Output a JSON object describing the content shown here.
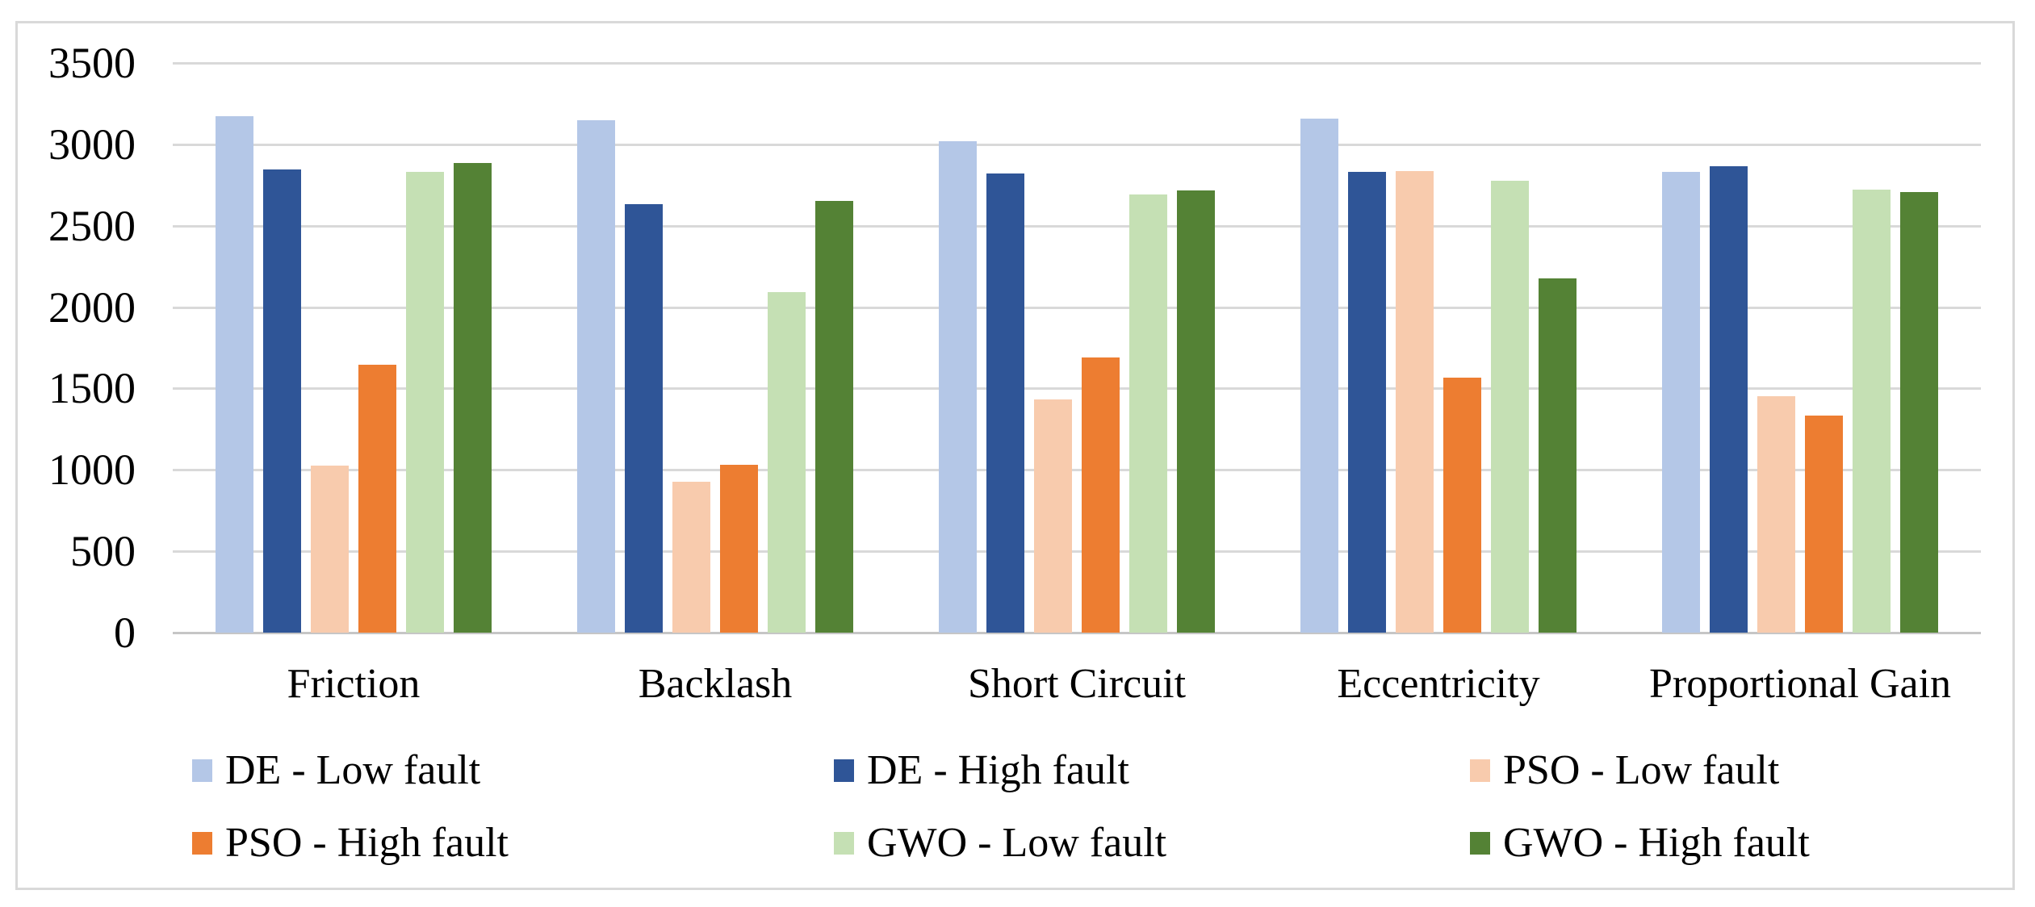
{
  "chart_data": {
    "type": "bar",
    "title": "",
    "xlabel": "",
    "ylabel": "",
    "categories": [
      "Friction",
      "Backlash",
      "Short Circuit",
      "Eccentricity",
      "Proportional Gain"
    ],
    "series": [
      {
        "name": "DE - Low fault",
        "color": "#B4C7E7",
        "values": [
          3175,
          3150,
          3020,
          3160,
          2830
        ]
      },
      {
        "name": "DE - High fault",
        "color": "#2F5597",
        "values": [
          2845,
          2630,
          2820,
          2830,
          2865
        ]
      },
      {
        "name": "PSO - Low fault",
        "color": "#F8CBAD",
        "values": [
          1025,
          925,
          1435,
          2835,
          1455
        ]
      },
      {
        "name": "PSO - High fault",
        "color": "#ED7D31",
        "values": [
          1645,
          1030,
          1690,
          1565,
          1335
        ]
      },
      {
        "name": "GWO - Low fault",
        "color": "#C5E0B4",
        "values": [
          2830,
          2090,
          2690,
          2775,
          2720
        ]
      },
      {
        "name": "GWO - High fault",
        "color": "#548235",
        "values": [
          2885,
          2650,
          2715,
          2175,
          2705
        ]
      }
    ],
    "y_ticks": [
      0,
      500,
      1000,
      1500,
      2000,
      2500,
      3000,
      3500
    ],
    "ylim": [
      0,
      3500
    ],
    "grid": true,
    "legend_position": "bottom",
    "legend_columns": 3,
    "styling": {
      "gridline_color": "#D9D9D9",
      "axis_line_color": "#C6C6C6",
      "frame_border_color": "#D9D9D9",
      "text_color": "#000000",
      "background_color": "#FFFFFF"
    }
  }
}
